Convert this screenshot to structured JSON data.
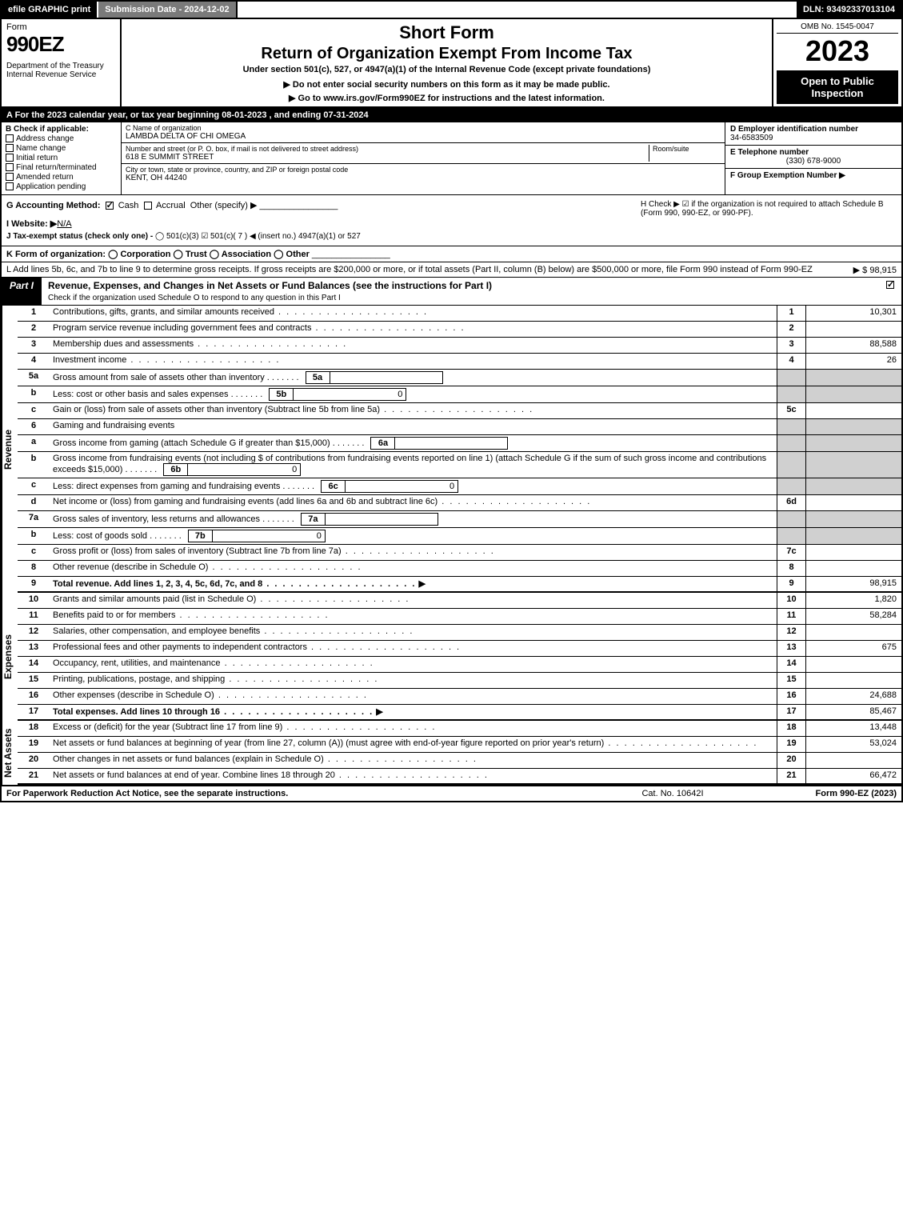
{
  "topbar": {
    "print": "efile GRAPHIC print",
    "sub_date": "Submission Date - 2024-12-02",
    "dln": "DLN: 93492337013104"
  },
  "header": {
    "form_label": "Form",
    "form_no": "990EZ",
    "dept": "Department of the Treasury\nInternal Revenue Service",
    "title_short": "Short Form",
    "title_main": "Return of Organization Exempt From Income Tax",
    "subtitle": "Under section 501(c), 527, or 4947(a)(1) of the Internal Revenue Code (except private foundations)",
    "notice": "▶ Do not enter social security numbers on this form as it may be made public.",
    "notice2": "▶ Go to www.irs.gov/Form990EZ for instructions and the latest information.",
    "omb": "OMB No. 1545-0047",
    "year": "2023",
    "open": "Open to Public Inspection"
  },
  "line_a": "A  For the 2023 calendar year, or tax year beginning 08-01-2023 , and ending 07-31-2024",
  "col_b": {
    "head": "B  Check if applicable:",
    "opts": [
      "Address change",
      "Name change",
      "Initial return",
      "Final return/terminated",
      "Amended return",
      "Application pending"
    ]
  },
  "col_c": {
    "name_label": "C Name of organization",
    "name": "LAMBDA DELTA OF CHI OMEGA",
    "addr_label": "Number and street (or P. O. box, if mail is not delivered to street address)",
    "room_label": "Room/suite",
    "addr": "618 E SUMMIT STREET",
    "city_label": "City or town, state or province, country, and ZIP or foreign postal code",
    "city": "KENT, OH  44240"
  },
  "col_def": {
    "d_label": "D Employer identification number",
    "d_val": "34-6583509",
    "e_label": "E Telephone number",
    "e_val": "(330) 678-9000",
    "f_label": "F Group Exemption Number  ▶"
  },
  "section_g": {
    "g_label": "G Accounting Method:",
    "g_cash": "Cash",
    "g_accrual": "Accrual",
    "g_other": "Other (specify) ▶",
    "i_label": "I Website: ▶",
    "i_val": "N/A",
    "j_label": "J Tax-exempt status (check only one) -",
    "j_opts": "501(c)(3)   ☑ 501(c)( 7 ) ◀ (insert no.)   4947(a)(1) or   527"
  },
  "section_h": {
    "text": "H  Check ▶ ☑ if the organization is not required to attach Schedule B (Form 990, 990-EZ, or 990-PF)."
  },
  "line_k": "K Form of organization:   ◯ Corporation   ◯ Trust   ◯ Association   ◯ Other",
  "line_l": {
    "text": "L Add lines 5b, 6c, and 7b to line 9 to determine gross receipts. If gross receipts are $200,000 or more, or if total assets (Part II, column (B) below) are $500,000 or more, file Form 990 instead of Form 990-EZ",
    "val": "▶ $ 98,915"
  },
  "part1": {
    "label": "Part I",
    "title": "Revenue, Expenses, and Changes in Net Assets or Fund Balances (see the instructions for Part I)",
    "sub": "Check if the organization used Schedule O to respond to any question in this Part I"
  },
  "revenue": {
    "side": "Revenue",
    "rows": [
      {
        "n": "1",
        "d": "Contributions, gifts, grants, and similar amounts received",
        "box": "1",
        "v": "10,301"
      },
      {
        "n": "2",
        "d": "Program service revenue including government fees and contracts",
        "box": "2",
        "v": ""
      },
      {
        "n": "3",
        "d": "Membership dues and assessments",
        "box": "3",
        "v": "88,588"
      },
      {
        "n": "4",
        "d": "Investment income",
        "box": "4",
        "v": "26"
      },
      {
        "n": "5a",
        "d": "Gross amount from sale of assets other than inventory",
        "ib": "5a",
        "iv": ""
      },
      {
        "n": "b",
        "d": "Less: cost or other basis and sales expenses",
        "ib": "5b",
        "iv": "0"
      },
      {
        "n": "c",
        "d": "Gain or (loss) from sale of assets other than inventory (Subtract line 5b from line 5a)",
        "box": "5c",
        "v": ""
      },
      {
        "n": "6",
        "d": "Gaming and fundraising events"
      },
      {
        "n": "a",
        "d": "Gross income from gaming (attach Schedule G if greater than $15,000)",
        "ib": "6a",
        "iv": ""
      },
      {
        "n": "b",
        "d": "Gross income from fundraising events (not including $            of contributions from fundraising events reported on line 1) (attach Schedule G if the sum of such gross income and contributions exceeds $15,000)",
        "ib": "6b",
        "iv": "0"
      },
      {
        "n": "c",
        "d": "Less: direct expenses from gaming and fundraising events",
        "ib": "6c",
        "iv": "0"
      },
      {
        "n": "d",
        "d": "Net income or (loss) from gaming and fundraising events (add lines 6a and 6b and subtract line 6c)",
        "box": "6d",
        "v": ""
      },
      {
        "n": "7a",
        "d": "Gross sales of inventory, less returns and allowances",
        "ib": "7a",
        "iv": ""
      },
      {
        "n": "b",
        "d": "Less: cost of goods sold",
        "ib": "7b",
        "iv": "0"
      },
      {
        "n": "c",
        "d": "Gross profit or (loss) from sales of inventory (Subtract line 7b from line 7a)",
        "box": "7c",
        "v": ""
      },
      {
        "n": "8",
        "d": "Other revenue (describe in Schedule O)",
        "box": "8",
        "v": ""
      },
      {
        "n": "9",
        "d": "Total revenue. Add lines 1, 2, 3, 4, 5c, 6d, 7c, and 8",
        "box": "9",
        "v": "98,915",
        "bold": true,
        "arrow": true
      }
    ]
  },
  "expenses": {
    "side": "Expenses",
    "rows": [
      {
        "n": "10",
        "d": "Grants and similar amounts paid (list in Schedule O)",
        "box": "10",
        "v": "1,820"
      },
      {
        "n": "11",
        "d": "Benefits paid to or for members",
        "box": "11",
        "v": "58,284"
      },
      {
        "n": "12",
        "d": "Salaries, other compensation, and employee benefits",
        "box": "12",
        "v": ""
      },
      {
        "n": "13",
        "d": "Professional fees and other payments to independent contractors",
        "box": "13",
        "v": "675"
      },
      {
        "n": "14",
        "d": "Occupancy, rent, utilities, and maintenance",
        "box": "14",
        "v": ""
      },
      {
        "n": "15",
        "d": "Printing, publications, postage, and shipping",
        "box": "15",
        "v": ""
      },
      {
        "n": "16",
        "d": "Other expenses (describe in Schedule O)",
        "box": "16",
        "v": "24,688"
      },
      {
        "n": "17",
        "d": "Total expenses. Add lines 10 through 16",
        "box": "17",
        "v": "85,467",
        "bold": true,
        "arrow": true
      }
    ]
  },
  "netassets": {
    "side": "Net Assets",
    "rows": [
      {
        "n": "18",
        "d": "Excess or (deficit) for the year (Subtract line 17 from line 9)",
        "box": "18",
        "v": "13,448"
      },
      {
        "n": "19",
        "d": "Net assets or fund balances at beginning of year (from line 27, column (A)) (must agree with end-of-year figure reported on prior year's return)",
        "box": "19",
        "v": "53,024"
      },
      {
        "n": "20",
        "d": "Other changes in net assets or fund balances (explain in Schedule O)",
        "box": "20",
        "v": ""
      },
      {
        "n": "21",
        "d": "Net assets or fund balances at end of year. Combine lines 18 through 20",
        "box": "21",
        "v": "66,472"
      }
    ]
  },
  "footer": {
    "left": "For Paperwork Reduction Act Notice, see the separate instructions.",
    "mid": "Cat. No. 10642I",
    "right": "Form 990-EZ (2023)"
  }
}
